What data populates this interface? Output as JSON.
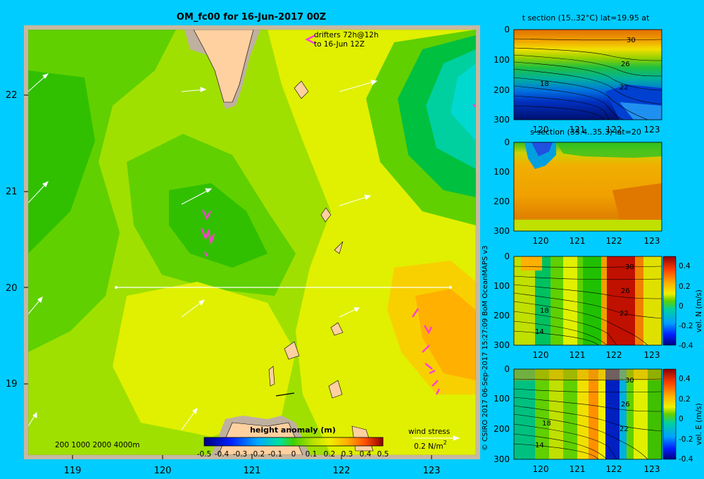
{
  "main_map": {
    "title": "OM_fc00 for 16-Jun-2017 00Z",
    "drifters_label_1": "drifters 72h@12h",
    "drifters_label_2": "to 16-Jun 12Z",
    "lat_ticks": [
      "22",
      "21",
      "20",
      "19"
    ],
    "lon_ticks": [
      "119",
      "120",
      "121",
      "122",
      "123"
    ],
    "depth_legend": "200  1000  2000  4000m",
    "colorbar_title": "height anomaly (m)",
    "colorbar_ticks": [
      "-0.5",
      "-0.4",
      "-0.3",
      "-0.2",
      "-0.1",
      "0",
      "0.1",
      "0.2",
      "0.3",
      "0.4",
      "0.5"
    ],
    "wind_label": "wind stress",
    "wind_scale": "0.2 N/m",
    "wind_scale_sup": "2"
  },
  "credit": "© CSIRO 2017   06-Sep-2017 15:27:09 BoM OceanMAPS v3",
  "panels": [
    {
      "id": "t-section",
      "title": "t section (15..32°C) lat=19.95 at",
      "depth_ticks": [
        "0",
        "100",
        "200",
        "300"
      ],
      "lon_ticks": [
        "120",
        "121",
        "122",
        "123"
      ],
      "contour_labels": [
        "30",
        "26",
        "18",
        "22"
      ]
    },
    {
      "id": "s-section",
      "title": "s section (33.4..35.3) lat=20",
      "depth_ticks": [
        "0",
        "100",
        "200",
        "300"
      ],
      "lon_ticks": [
        "120",
        "121",
        "122",
        "123"
      ],
      "contour_labels": []
    },
    {
      "id": "vel-n-section",
      "title": "",
      "depth_ticks": [
        "0",
        "100",
        "200",
        "300"
      ],
      "lon_ticks": [
        "120",
        "121",
        "122",
        "123"
      ],
      "contour_labels": [
        "30",
        "26",
        "18",
        "22",
        "14"
      ],
      "cbar_label": "vel. N (m/s)",
      "cbar_ticks": [
        "0.4",
        "0.2",
        "0",
        "-0.2",
        "-0.4"
      ]
    },
    {
      "id": "vel-e-section",
      "title": "",
      "depth_ticks": [
        "0",
        "100",
        "200",
        "300"
      ],
      "lon_ticks": [
        "120",
        "121",
        "122",
        "123"
      ],
      "contour_labels": [
        "30",
        "26",
        "18",
        "22",
        "14"
      ],
      "cbar_label": "vel. E (m/s)",
      "cbar_ticks": [
        "0.4",
        "0.2",
        "0",
        "-0.2",
        "-0.4"
      ]
    }
  ]
}
